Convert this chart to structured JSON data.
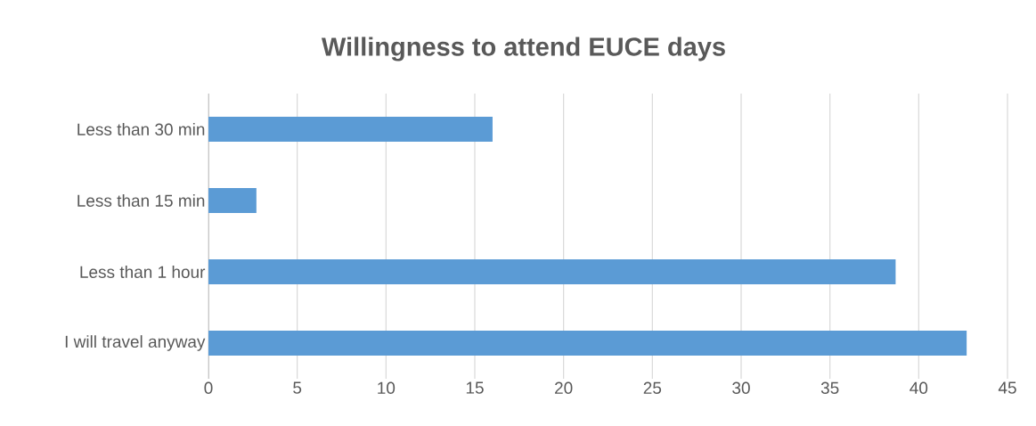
{
  "chart_data": {
    "type": "bar",
    "orientation": "horizontal",
    "title": "Willingness to attend EUCE days",
    "categories": [
      "Less than 30 min",
      "Less than 15 min",
      "Less than 1 hour",
      "I will travel anyway"
    ],
    "values": [
      16.0,
      2.7,
      38.7,
      42.7
    ],
    "color": "#5b9bd5",
    "xlim": [
      0,
      45
    ],
    "xticks": [
      0,
      5,
      10,
      15,
      20,
      25,
      30,
      35,
      40,
      45
    ],
    "grid": "x"
  }
}
